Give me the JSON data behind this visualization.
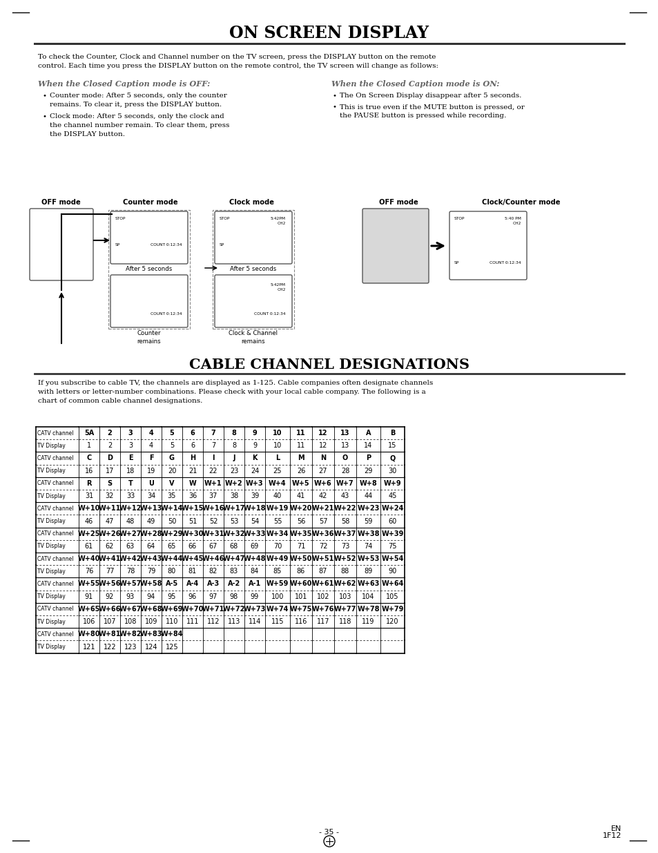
{
  "title_main": "ON SCREEN DISPLAY",
  "title_cable": "CABLE CHANNEL DESIGNATIONS",
  "intro_text": "To check the Counter, Clock and Channel number on the TV screen, press the DISPLAY button on the remote\ncontrol. Each time you press the DISPLAY button on the remote control, the TV screen will change as follows:",
  "left_heading": "When the Closed Caption mode is OFF:",
  "right_heading": "When the Closed Caption mode is ON:",
  "left_bullets": [
    "Counter mode: After 5 seconds, only the counter\nremains. To clear it, press the DISPLAY button.",
    "Clock mode: After 5 seconds, only the clock and\nthe channel number remain. To clear them, press\nthe DISPLAY button."
  ],
  "right_bullets": [
    "The On Screen Display disappear after 5 seconds.",
    "This is true even if the MUTE button is pressed, or\nthe PAUSE button is pressed while recording."
  ],
  "cable_intro": "If you subscribe to cable TV, the channels are displayed as 1-125. Cable companies often designate channels\nwith letters or letter-number combinations. Please check with your local cable company. The following is a\nchart of common cable channel designations.",
  "footer_page": "- 35 -",
  "footer_en": "EN\n1F12",
  "table_data": [
    [
      "CATV channel",
      "5A",
      "2",
      "3",
      "4",
      "5",
      "6",
      "7",
      "8",
      "9",
      "10",
      "11",
      "12",
      "13",
      "A",
      "B"
    ],
    [
      "TV Display",
      "1",
      "2",
      "3",
      "4",
      "5",
      "6",
      "7",
      "8",
      "9",
      "10",
      "11",
      "12",
      "13",
      "14",
      "15"
    ],
    [
      "CATV channel",
      "C",
      "D",
      "E",
      "F",
      "G",
      "H",
      "I",
      "J",
      "K",
      "L",
      "M",
      "N",
      "O",
      "P",
      "Q"
    ],
    [
      "TV Display",
      "16",
      "17",
      "18",
      "19",
      "20",
      "21",
      "22",
      "23",
      "24",
      "25",
      "26",
      "27",
      "28",
      "29",
      "30"
    ],
    [
      "CATV channel",
      "R",
      "S",
      "T",
      "U",
      "V",
      "W",
      "W+1",
      "W+2",
      "W+3",
      "W+4",
      "W+5",
      "W+6",
      "W+7",
      "W+8",
      "W+9"
    ],
    [
      "TV Display",
      "31",
      "32",
      "33",
      "34",
      "35",
      "36",
      "37",
      "38",
      "39",
      "40",
      "41",
      "42",
      "43",
      "44",
      "45"
    ],
    [
      "CATV channel",
      "W+10",
      "W+11",
      "W+12",
      "W+13",
      "W+14",
      "W+15",
      "W+16",
      "W+17",
      "W+18",
      "W+19",
      "W+20",
      "W+21",
      "W+22",
      "W+23",
      "W+24"
    ],
    [
      "TV Display",
      "46",
      "47",
      "48",
      "49",
      "50",
      "51",
      "52",
      "53",
      "54",
      "55",
      "56",
      "57",
      "58",
      "59",
      "60"
    ],
    [
      "CATV channel",
      "W+25",
      "W+26",
      "W+27",
      "W+28",
      "W+29",
      "W+30",
      "W+31",
      "W+32",
      "W+33",
      "W+34",
      "W+35",
      "W+36",
      "W+37",
      "W+38",
      "W+39"
    ],
    [
      "TV Display",
      "61",
      "62",
      "63",
      "64",
      "65",
      "66",
      "67",
      "68",
      "69",
      "70",
      "71",
      "72",
      "73",
      "74",
      "75"
    ],
    [
      "CATV channel",
      "W+40",
      "W+41",
      "W+42",
      "W+43",
      "W+44",
      "W+45",
      "W+46",
      "W+47",
      "W+48",
      "W+49",
      "W+50",
      "W+51",
      "W+52",
      "W+53",
      "W+54"
    ],
    [
      "TV Display",
      "76",
      "77",
      "78",
      "79",
      "80",
      "81",
      "82",
      "83",
      "84",
      "85",
      "86",
      "87",
      "88",
      "89",
      "90"
    ],
    [
      "CATV channel",
      "W+55",
      "W+56",
      "W+57",
      "W+58",
      "A-5",
      "A-4",
      "A-3",
      "A-2",
      "A-1",
      "W+59",
      "W+60",
      "W+61",
      "W+62",
      "W+63",
      "W+64"
    ],
    [
      "TV Display",
      "91",
      "92",
      "93",
      "94",
      "95",
      "96",
      "97",
      "98",
      "99",
      "100",
      "101",
      "102",
      "103",
      "104",
      "105"
    ],
    [
      "CATV channel",
      "W+65",
      "W+66",
      "W+67",
      "W+68",
      "W+69",
      "W+70",
      "W+71",
      "W+72",
      "W+73",
      "W+74",
      "W+75",
      "W+76",
      "W+77",
      "W+78",
      "W+79"
    ],
    [
      "TV Display",
      "106",
      "107",
      "108",
      "109",
      "110",
      "111",
      "112",
      "113",
      "114",
      "115",
      "116",
      "117",
      "118",
      "119",
      "120"
    ],
    [
      "CATV channel",
      "W+80",
      "W+81",
      "W+82",
      "W+83",
      "W+84",
      "",
      "",
      "",
      "",
      "",
      "",
      "",
      "",
      "",
      ""
    ],
    [
      "TV Display",
      "121",
      "122",
      "123",
      "124",
      "125",
      "",
      "",
      "",
      "",
      "",
      "",
      "",
      "",
      "",
      ""
    ]
  ],
  "background_color": "#ffffff"
}
